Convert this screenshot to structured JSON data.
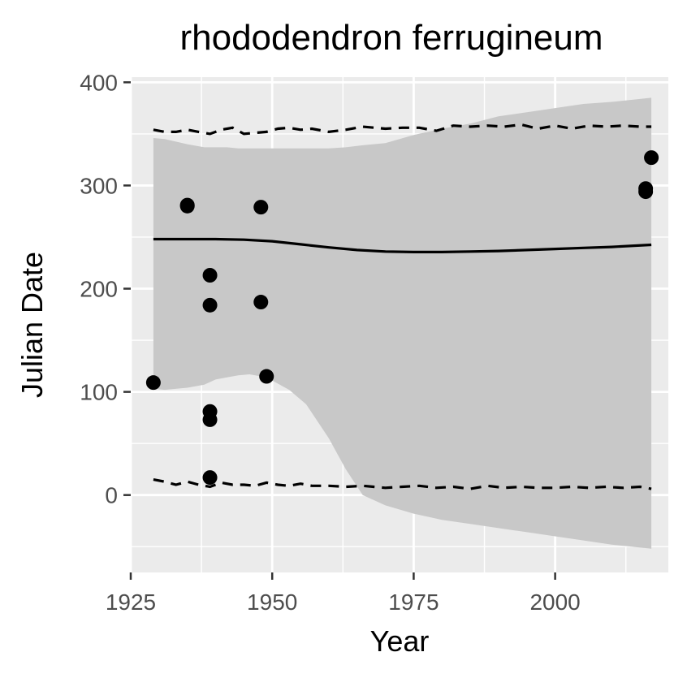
{
  "chart_data": {
    "type": "scatter",
    "title": "rhododendron ferrugineum",
    "xlabel": "Year",
    "ylabel": "Julian Date",
    "xlim": [
      1925,
      2020
    ],
    "ylim": [
      -75,
      405
    ],
    "x_ticks": [
      1925,
      1950,
      1975,
      2000
    ],
    "y_ticks": [
      0,
      100,
      200,
      300,
      400
    ],
    "x_tick_labels": [
      "1925",
      "1950",
      "1975",
      "2000"
    ],
    "y_tick_labels": [
      "0",
      "100",
      "200",
      "300",
      "400"
    ],
    "grid": true,
    "legend": "none",
    "colors": {
      "panel": "#ebebeb",
      "grid": "#ffffff",
      "band": "#c8c8c8",
      "points": "#000000",
      "line": "#000000"
    },
    "points": [
      {
        "x": 1929,
        "y": 109
      },
      {
        "x": 1935,
        "y": 281
      },
      {
        "x": 1935,
        "y": 280
      },
      {
        "x": 1939,
        "y": 213
      },
      {
        "x": 1939,
        "y": 184
      },
      {
        "x": 1939,
        "y": 81
      },
      {
        "x": 1939,
        "y": 73
      },
      {
        "x": 1939,
        "y": 17
      },
      {
        "x": 1948,
        "y": 279
      },
      {
        "x": 1948,
        "y": 187
      },
      {
        "x": 1949,
        "y": 115
      },
      {
        "x": 2016,
        "y": 297
      },
      {
        "x": 2016,
        "y": 294
      },
      {
        "x": 2017,
        "y": 327
      }
    ],
    "fit_line": {
      "x": [
        1929,
        1935,
        1940,
        1945,
        1950,
        1955,
        1960,
        1965,
        1970,
        1975,
        1980,
        1985,
        1990,
        1995,
        2000,
        2005,
        2010,
        2017
      ],
      "y": [
        248,
        248,
        248,
        247.5,
        246,
        243,
        240,
        237.5,
        236,
        235.5,
        235.5,
        236,
        236.5,
        237.5,
        238.5,
        239.5,
        240.5,
        242.5
      ]
    },
    "band": {
      "x": [
        1929,
        1931,
        1935,
        1938,
        1940,
        1942,
        1944,
        1946,
        1948,
        1950,
        1953,
        1956,
        1960,
        1963,
        1966,
        1970,
        1975,
        1980,
        1985,
        1990,
        1995,
        2000,
        2005,
        2010,
        2017
      ],
      "lower": [
        103,
        102,
        104,
        107,
        112,
        114,
        116,
        117,
        115,
        111,
        102,
        88,
        55,
        25,
        0,
        -10,
        -18,
        -24,
        -28,
        -32,
        -36,
        -40,
        -44,
        -48,
        -52
      ],
      "upper": [
        346,
        345,
        340,
        337,
        337,
        337,
        336,
        336,
        336,
        336,
        336,
        336,
        336,
        337,
        339,
        341,
        349,
        355,
        360,
        367,
        371,
        375,
        379,
        381,
        385
      ]
    },
    "upper_dashed": {
      "x": [
        1929,
        1931,
        1933,
        1935,
        1937,
        1939,
        1941,
        1943,
        1945,
        1947,
        1949,
        1951,
        1953,
        1955,
        1957,
        1960,
        1963,
        1966,
        1970,
        1973,
        1976,
        1979,
        1982,
        1985,
        1988,
        1991,
        1994,
        1997,
        2000,
        2003,
        2006,
        2009,
        2012,
        2015,
        2017
      ],
      "y": [
        354,
        352,
        352,
        354,
        352,
        350,
        354,
        356,
        350,
        351,
        352,
        355,
        356,
        354,
        355,
        352,
        354,
        357,
        355,
        356,
        356,
        353,
        358,
        357,
        358,
        357,
        359,
        355,
        358,
        355,
        358,
        357,
        358,
        357,
        357
      ]
    },
    "lower_dashed": {
      "x": [
        1929,
        1931,
        1933,
        1935,
        1937,
        1939,
        1941,
        1943,
        1945,
        1947,
        1949,
        1951,
        1953,
        1955,
        1957,
        1960,
        1963,
        1966,
        1970,
        1973,
        1976,
        1979,
        1982,
        1985,
        1988,
        1991,
        1994,
        1997,
        2000,
        2003,
        2006,
        2009,
        2012,
        2015,
        2017
      ],
      "y": [
        15,
        13,
        10,
        13,
        10,
        8,
        12,
        10,
        10,
        9,
        12,
        10,
        9,
        11,
        9,
        9,
        8,
        9,
        7,
        8,
        9,
        7,
        8,
        6,
        9,
        7,
        8,
        7,
        7,
        8,
        7,
        8,
        7,
        8,
        6
      ]
    }
  }
}
